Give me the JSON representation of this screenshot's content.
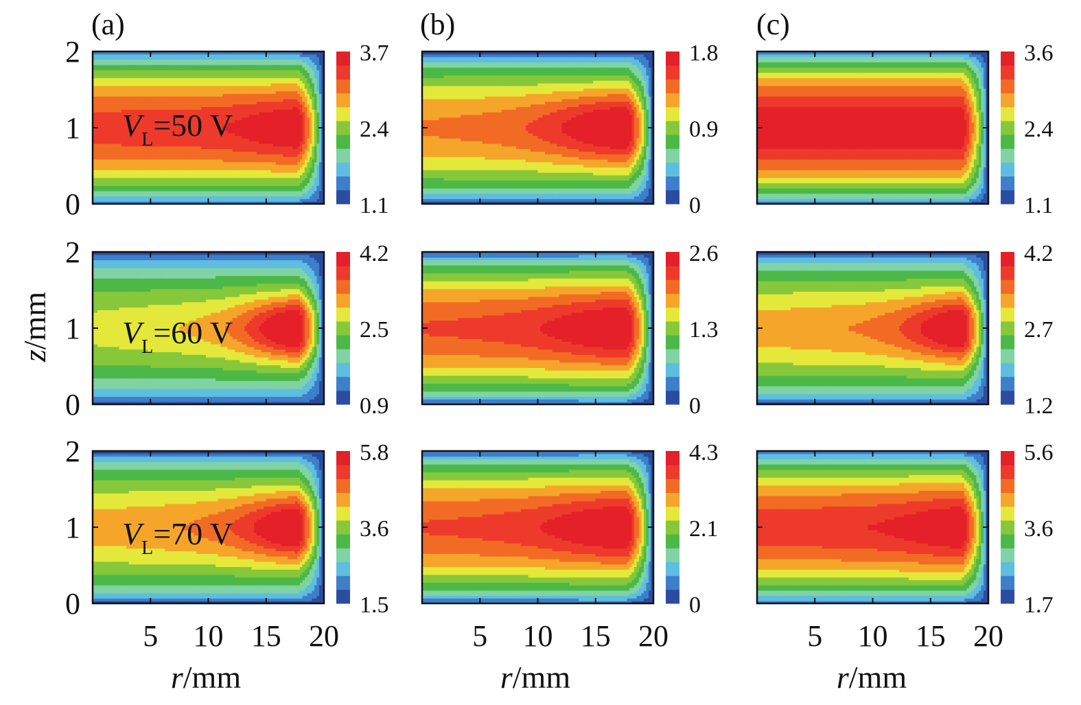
{
  "chart_data": {
    "type": "heatmap",
    "rows": 3,
    "cols": 3,
    "column_labels": [
      "(a)",
      "(b)",
      "(c)"
    ],
    "xlabel_var": "r",
    "xlabel_unit": "/mm",
    "ylabel_var": "z",
    "ylabel_unit": "/mm",
    "xlim": [
      0,
      20
    ],
    "ylim": [
      0,
      2
    ],
    "x_tick_labels": [
      "5",
      "10",
      "15",
      "20"
    ],
    "x_ticks": [
      5,
      10,
      15,
      20
    ],
    "y_tick_labels": [
      "0",
      "1",
      "2"
    ],
    "y_ticks": [
      0,
      1,
      2
    ],
    "colormap": [
      "#2b4ca0",
      "#3d7fc9",
      "#5fbde0",
      "#7fd3a4",
      "#4cb848",
      "#86c83a",
      "#e4e83a",
      "#f5a62a",
      "#f26b25",
      "#ee3a2b",
      "#e42028"
    ],
    "row_annotations": [
      {
        "var": "V",
        "sub": "L",
        "text": "=50 V"
      },
      {
        "var": "V",
        "sub": "L",
        "text": "=60 V"
      },
      {
        "var": "V",
        "sub": "L",
        "text": "=70 V"
      }
    ],
    "panels": [
      {
        "row": 0,
        "col": 0,
        "colorbar_labels": [
          "3.7",
          "2.4",
          "1.1"
        ],
        "core_value": 0.87,
        "hot_radius": 18.4,
        "hot_strength": 0.13,
        "plume_width": 0.3
      },
      {
        "row": 0,
        "col": 1,
        "colorbar_labels": [
          "1.8",
          "0.9",
          "0"
        ],
        "core_value": 0.74,
        "hot_radius": 17.8,
        "hot_strength": 0.26,
        "plume_width": 0.55
      },
      {
        "row": 0,
        "col": 2,
        "colorbar_labels": [
          "3.6",
          "2.4",
          "1.1"
        ],
        "core_value": 0.99,
        "hot_radius": 18.3,
        "hot_strength": 0.01,
        "plume_width": 0.2
      },
      {
        "row": 1,
        "col": 0,
        "colorbar_labels": [
          "4.2",
          "2.5",
          "0.9"
        ],
        "core_value": 0.58,
        "hot_radius": 18.4,
        "hot_strength": 0.42,
        "plume_width": 0.3
      },
      {
        "row": 1,
        "col": 1,
        "colorbar_labels": [
          "2.6",
          "1.3",
          "0"
        ],
        "core_value": 0.83,
        "hot_radius": 17.6,
        "hot_strength": 0.17,
        "plume_width": 0.6
      },
      {
        "row": 1,
        "col": 2,
        "colorbar_labels": [
          "4.2",
          "2.7",
          "1.2"
        ],
        "core_value": 0.68,
        "hot_radius": 18.4,
        "hot_strength": 0.32,
        "plume_width": 0.3
      },
      {
        "row": 2,
        "col": 0,
        "colorbar_labels": [
          "5.8",
          "3.6",
          "1.5"
        ],
        "core_value": 0.68,
        "hot_radius": 18.4,
        "hot_strength": 0.32,
        "plume_width": 0.35
      },
      {
        "row": 2,
        "col": 1,
        "colorbar_labels": [
          "4.3",
          "2.1",
          "0"
        ],
        "core_value": 0.83,
        "hot_radius": 17.6,
        "hot_strength": 0.17,
        "plume_width": 0.6
      },
      {
        "row": 2,
        "col": 2,
        "colorbar_labels": [
          "5.6",
          "3.6",
          "1.7"
        ],
        "core_value": 0.88,
        "hot_radius": 18.3,
        "hot_strength": 0.12,
        "plume_width": 0.4
      }
    ]
  }
}
